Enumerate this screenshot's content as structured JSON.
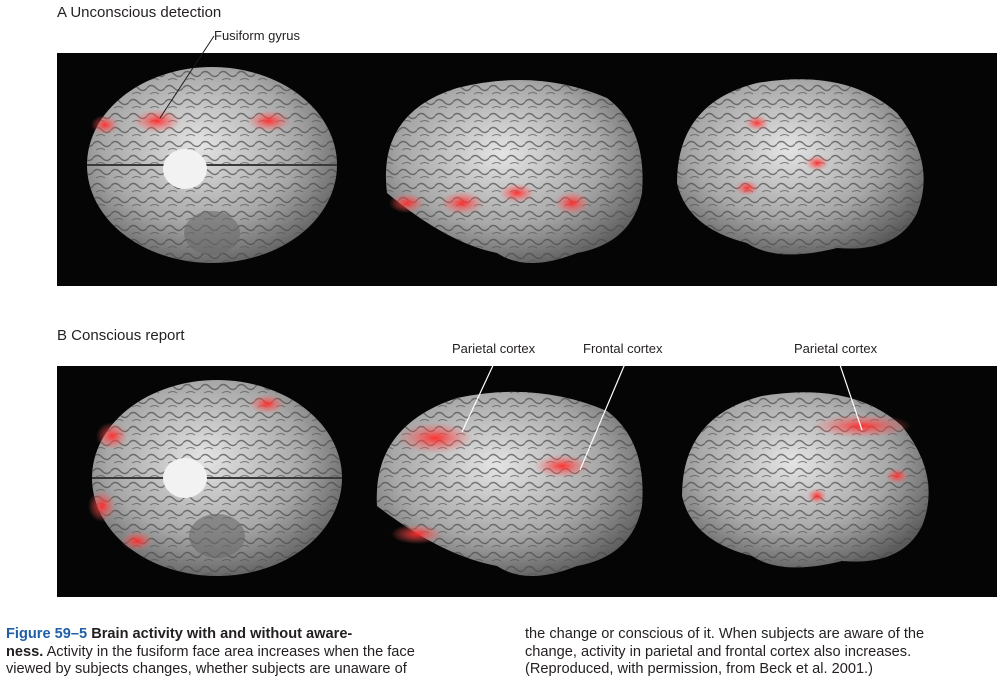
{
  "panel_a": {
    "label": "A  Unconscious detection",
    "callouts": {
      "fusiform": "Fusiform gyrus"
    }
  },
  "panel_b": {
    "label": "B  Conscious report",
    "callouts": {
      "parietal_left": "Parietal cortex",
      "frontal": "Frontal cortex",
      "parietal_right": "Parietal cortex"
    }
  },
  "caption": {
    "figure_number": "Figure 59–5",
    "title_line1": "Brain activity with and without aware-",
    "title_line2": "ness.",
    "body_left_line1": " Activity in the fusiform face area increases when the face",
    "body_left_line2": "viewed by subjects changes, whether subjects are unaware of",
    "body_right_line1": "the change or conscious of it. When subjects are aware of the",
    "body_right_line2": "change, activity in parietal and frontal cortex also increases.",
    "body_right_line3": "(Reproduced, with permission, from Beck et al. 2001.)"
  },
  "colors": {
    "figure_number": "#1f5fa8",
    "panel_background": "#050505",
    "activation": "#ff3b3b",
    "cortex": "#b8b8b8"
  }
}
